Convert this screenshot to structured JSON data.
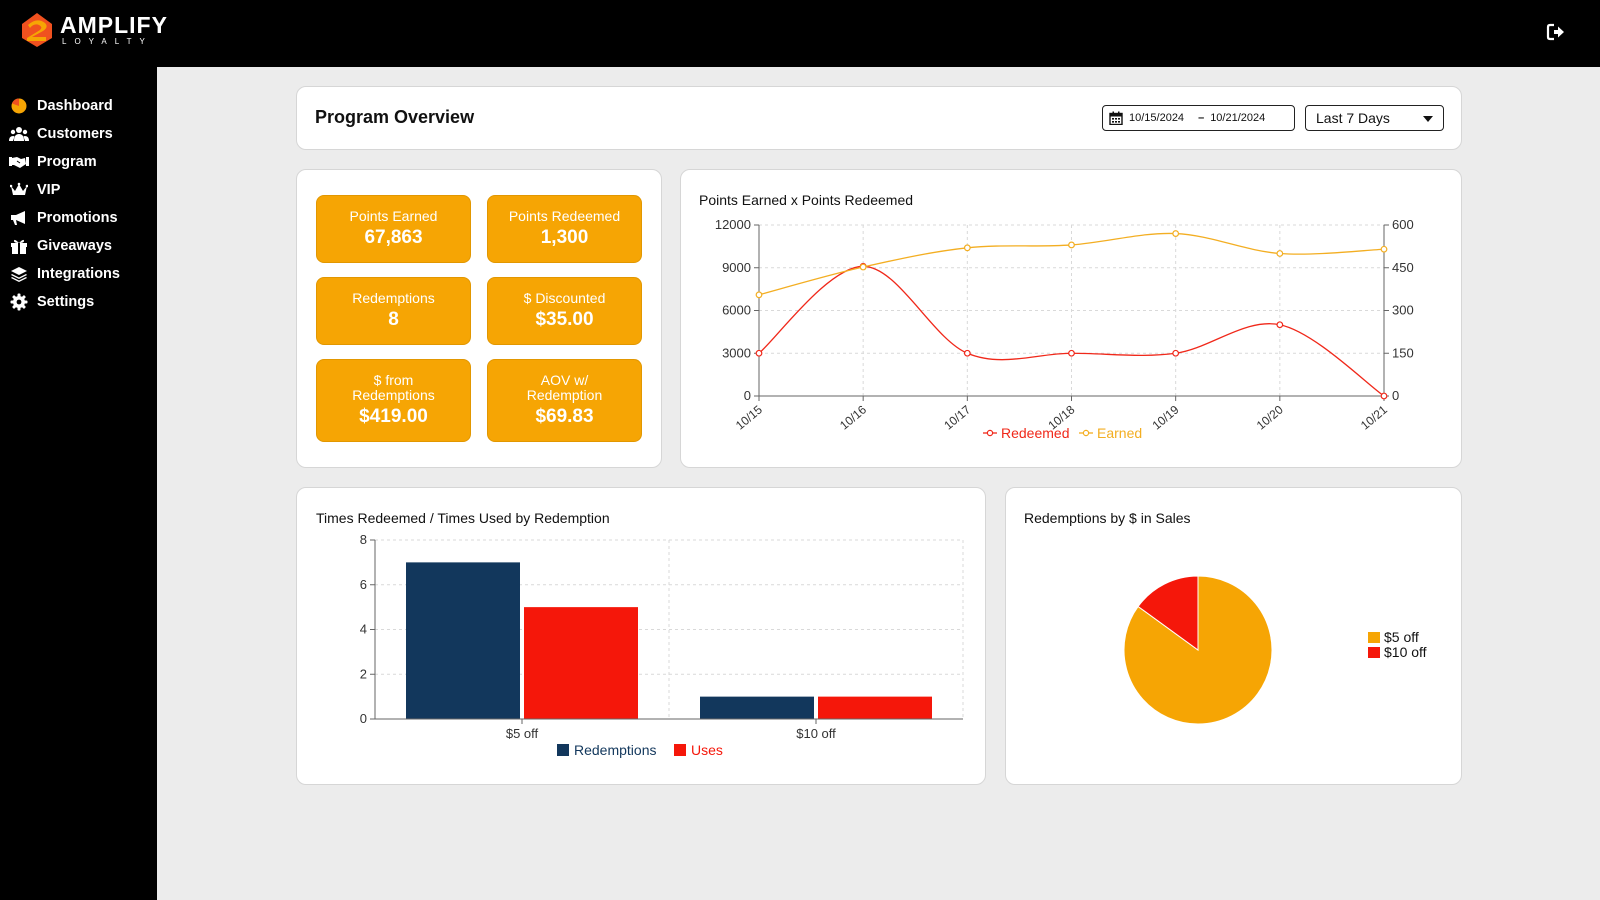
{
  "brand": {
    "name": "AMPLIFY",
    "tagline": "LOYALTY",
    "accent": "#f6a504"
  },
  "header": {
    "logout_icon": "logout-icon"
  },
  "sidebar": {
    "items": [
      {
        "label": "Dashboard",
        "icon": "dashboard-pie-icon"
      },
      {
        "label": "Customers",
        "icon": "users-icon"
      },
      {
        "label": "Program",
        "icon": "handshake-icon"
      },
      {
        "label": "VIP",
        "icon": "crown-icon"
      },
      {
        "label": "Promotions",
        "icon": "megaphone-icon"
      },
      {
        "label": "Giveaways",
        "icon": "gift-icon"
      },
      {
        "label": "Integrations",
        "icon": "layers-icon"
      },
      {
        "label": "Settings",
        "icon": "gear-icon"
      }
    ]
  },
  "overview": {
    "title": "Program Overview",
    "date_start": "10/15/2024",
    "date_separator": "–",
    "date_end": "10/21/2024",
    "period": "Last 7 Days"
  },
  "stats": [
    {
      "label": "Points Earned",
      "value": "67,863"
    },
    {
      "label": "Points Redeemed",
      "value": "1,300"
    },
    {
      "label": "Redemptions",
      "value": "8"
    },
    {
      "label": "$ Discounted",
      "value": "$35.00"
    },
    {
      "label": "$ from Redemptions",
      "value": "$419.00"
    },
    {
      "label": "AOV w/ Redemption",
      "value": "$69.83"
    }
  ],
  "chart_data": [
    {
      "type": "line",
      "title": "Points Earned x Points Redeemed",
      "categories": [
        "10/15",
        "10/16",
        "10/17",
        "10/18",
        "10/19",
        "10/20",
        "10/21"
      ],
      "y_left": {
        "range": [
          0,
          12000
        ],
        "ticks": [
          0,
          3000,
          6000,
          9000,
          12000
        ]
      },
      "y_right": {
        "range": [
          0,
          600
        ],
        "ticks": [
          0,
          150,
          300,
          450,
          600
        ]
      },
      "series": [
        {
          "name": "Redeemed",
          "axis": "right",
          "color": "#f0281a",
          "values": [
            150,
            455,
            150,
            150,
            150,
            250,
            0
          ]
        },
        {
          "name": "Earned",
          "axis": "left",
          "color": "#f3ae22",
          "values": [
            7100,
            9050,
            10400,
            10600,
            11400,
            10000,
            10300
          ]
        }
      ],
      "grid": true,
      "legend": "bottom"
    },
    {
      "type": "bar",
      "title": "Times Redeemed / Times Used by Redemption",
      "categories": [
        "$5 off",
        "$10 off"
      ],
      "ylim": [
        0,
        8
      ],
      "yticks": [
        0,
        2,
        4,
        6,
        8
      ],
      "series": [
        {
          "name": "Redemptions",
          "color": "#12375c",
          "values": [
            7,
            1
          ]
        },
        {
          "name": "Uses",
          "color": "#f5170a",
          "values": [
            5,
            1
          ]
        }
      ],
      "grid": true,
      "legend": "bottom"
    },
    {
      "type": "pie",
      "title": "Redemptions by $ in Sales",
      "slices": [
        {
          "name": "$5 off",
          "color": "#f6a504",
          "value": 85
        },
        {
          "name": "$10 off",
          "color": "#f5170a",
          "value": 15
        }
      ],
      "legend": "right"
    }
  ]
}
